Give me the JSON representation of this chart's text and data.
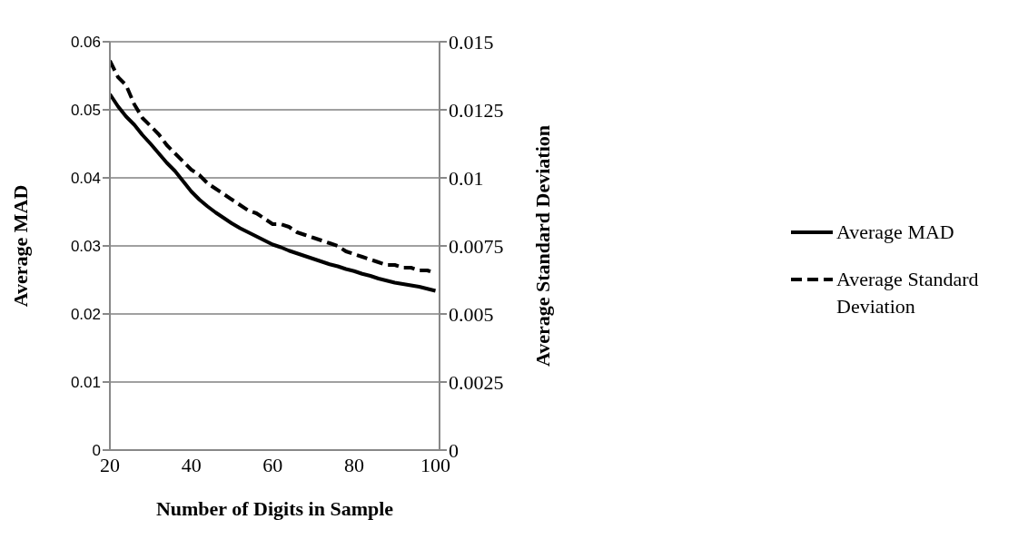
{
  "chart_data": {
    "type": "line",
    "xlabel": "Number of Digits in Sample",
    "ylabel": "Average MAD",
    "y2label": "Average Standard Deviation",
    "x": [
      20,
      22,
      24,
      26,
      28,
      30,
      32,
      34,
      36,
      38,
      40,
      42,
      44,
      46,
      48,
      50,
      52,
      54,
      56,
      58,
      60,
      62,
      64,
      66,
      68,
      70,
      72,
      74,
      76,
      78,
      80,
      82,
      84,
      86,
      88,
      90,
      92,
      94,
      96,
      98,
      100
    ],
    "series": [
      {
        "name": "Average MAD",
        "color": "#000000",
        "line_style": "solid",
        "values": [
          0.0523,
          0.0505,
          0.049,
          0.0478,
          0.0463,
          0.045,
          0.0436,
          0.0422,
          0.041,
          0.0395,
          0.038,
          0.0368,
          0.0358,
          0.0349,
          0.0341,
          0.0333,
          0.0326,
          0.032,
          0.0314,
          0.0308,
          0.0302,
          0.0298,
          0.0293,
          0.0289,
          0.0285,
          0.0281,
          0.0277,
          0.0273,
          0.027,
          0.0266,
          0.0263,
          0.0259,
          0.0256,
          0.0252,
          0.0249,
          0.0246,
          0.0244,
          0.0242,
          0.024,
          0.0237,
          0.0234
        ]
      },
      {
        "name": "Average Standard Deviation",
        "color": "#000000",
        "line_style": "dashed",
        "axis": "y2",
        "values": [
          0.0143,
          0.0137,
          0.0134,
          0.0127,
          0.0122,
          0.0119,
          0.0116,
          0.0112,
          0.0109,
          0.0106,
          0.0103,
          0.0101,
          0.0098,
          0.0096,
          0.0094,
          0.0092,
          0.009,
          0.0088,
          0.0087,
          0.0085,
          0.0083,
          0.0083,
          0.0082,
          0.008,
          0.0079,
          0.0078,
          0.0077,
          0.0076,
          0.0075,
          0.0073,
          0.0072,
          0.0071,
          0.007,
          0.0069,
          0.0068,
          0.0068,
          0.0067,
          0.0067,
          0.0066,
          0.0066,
          0.0065
        ]
      }
    ],
    "xlim": [
      20,
      101
    ],
    "xticks": [
      20,
      40,
      60,
      80,
      100
    ],
    "ylim": [
      0,
      0.06
    ],
    "yticks": [
      0,
      0.01,
      0.02,
      0.03,
      0.04,
      0.05,
      0.06
    ],
    "y2lim": [
      0,
      0.015
    ],
    "y2ticks": [
      0,
      0.0025,
      0.005,
      0.0075,
      0.01,
      0.0125,
      0.015
    ],
    "grid": "y",
    "legend": "right",
    "marker": "none"
  }
}
